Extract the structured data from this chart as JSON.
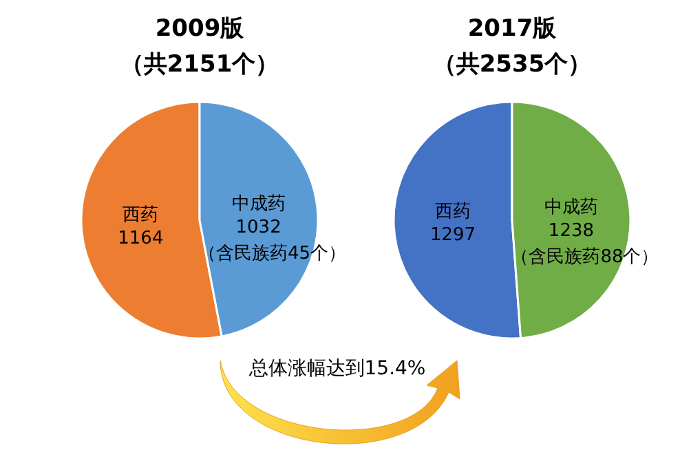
{
  "chart_data": [
    {
      "type": "pie",
      "title": "2009版",
      "subtitle": "（共2151个）",
      "categories": [
        "西药",
        "中成药"
      ],
      "values": [
        1164,
        1032
      ],
      "colors": [
        "#ed7d31",
        "#5b9bd5"
      ],
      "data_labels": true,
      "annotations": [
        "（含民族药45个）"
      ]
    },
    {
      "type": "pie",
      "title": "2017版",
      "subtitle": "（共2535个）",
      "categories": [
        "西药",
        "中成药"
      ],
      "values": [
        1297,
        1238
      ],
      "colors": [
        "#4472c4",
        "#70ad47"
      ],
      "data_labels": true,
      "annotations": [
        "（含民族药88个）",
        "总体涨幅达到15.4%"
      ]
    }
  ]
}
